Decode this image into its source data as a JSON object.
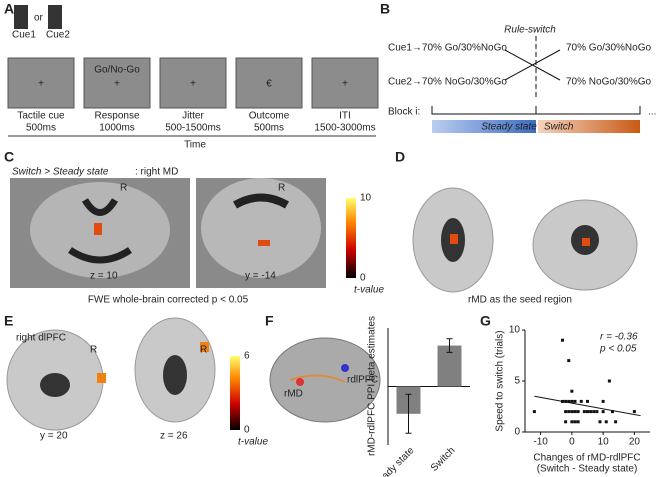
{
  "panel_labels": [
    "A",
    "B",
    "C",
    "D",
    "E",
    "F",
    "G"
  ],
  "panel_a": {
    "cues": [
      "Cue1",
      "Cue2"
    ],
    "or": "or",
    "response_prompt": "Go/No-Go",
    "screens": [
      {
        "symbol": "+",
        "symbol_color": "#e0282e",
        "label": "Tactile cue",
        "duration": "500ms"
      },
      {
        "symbol": "+",
        "symbol_color": "#3aa64a",
        "label": "Response",
        "duration": "1000ms"
      },
      {
        "symbol": "+",
        "symbol_color": "#111",
        "label": "Jitter",
        "duration": "500-1500ms"
      },
      {
        "symbol": "€",
        "symbol_color": "#111",
        "label": "Outcome",
        "duration": "500ms"
      },
      {
        "symbol": "+",
        "symbol_color": "#111",
        "label": "ITI",
        "duration": "1500-3000ms"
      }
    ],
    "time": "Time"
  },
  "panel_b": {
    "title": "Rule-switch",
    "left": [
      "Cue1→70% Go/30%NoGo",
      "Cue2→70% NoGo/30%Go"
    ],
    "right": [
      "70% Go/30%NoGo",
      "70% NoGo/30%Go"
    ],
    "block": "Block i:",
    "ellipsis": "...",
    "phases": [
      "Steady state",
      "Switch"
    ]
  },
  "panel_c": {
    "title_italic": "Switch > Steady state",
    "title_rest": ": right MD",
    "sides": [
      "R",
      "R"
    ],
    "slices": [
      "z = 10",
      "y = -14"
    ],
    "colorbar": {
      "ticks": [
        0,
        10
      ],
      "label": "t-value"
    },
    "note": "FWE whole-brain corrected p < 0.05"
  },
  "panel_d": {
    "caption": "rMD as the seed region"
  },
  "panel_e": {
    "title": "right dlPFC",
    "sides": [
      "R",
      "R"
    ],
    "slices": [
      "y = 20",
      "z = 26"
    ],
    "colorbar": {
      "ticks": [
        0,
        6
      ],
      "label": "t-value"
    }
  },
  "panel_f": {
    "regions": [
      "rMD",
      "rdlPFC"
    ]
  },
  "chart_data": [
    {
      "type": "bar",
      "ylabel": "rMD-rdlPFC PPI beta estimates",
      "categories": [
        "Steady state",
        "Switch"
      ],
      "values": [
        -1.4,
        2.1
      ],
      "errors": [
        1.0,
        0.35
      ],
      "color": "#808080",
      "ylim": [
        -3,
        3
      ]
    },
    {
      "type": "scatter",
      "ylabel": "Speed to switch (trials)",
      "xlabel": "Changes of rMD-rdlPFC",
      "xlabel_sub": "(Switch - Steady state)",
      "annotations": [
        "r = -0.36",
        "p < 0.05"
      ],
      "x": [
        -12,
        -3,
        -3,
        -2,
        -1,
        0,
        1,
        -2,
        -1,
        0,
        1,
        2,
        -1,
        0,
        1,
        -2,
        0,
        2,
        4,
        5,
        6,
        7,
        8,
        9,
        10,
        11,
        12,
        13,
        14,
        3,
        5,
        10,
        20
      ],
      "y": [
        2,
        9,
        3,
        3,
        3,
        3,
        3,
        2,
        2,
        2,
        2,
        2,
        7,
        4,
        1,
        1,
        1,
        1,
        2,
        2,
        2,
        2,
        2,
        1,
        2,
        1,
        5,
        2,
        1,
        3,
        3,
        3,
        2
      ],
      "color": "#111",
      "xlim": [
        -15,
        25
      ],
      "ylim": [
        0,
        10
      ],
      "xticks": [
        -10,
        0,
        10,
        20
      ],
      "yticks": [
        0,
        5,
        10
      ],
      "trend_line": {
        "x": [
          -12,
          22
        ],
        "y": [
          3.5,
          1.6
        ]
      }
    }
  ]
}
